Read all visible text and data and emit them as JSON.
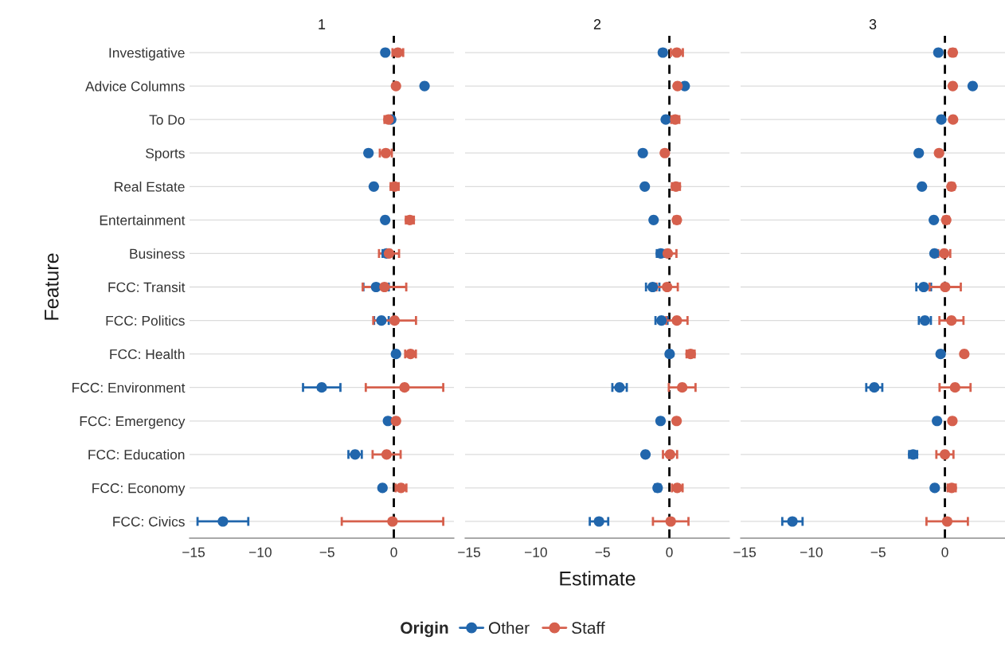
{
  "chart_data": [
    {
      "type": "scatter",
      "title": "1",
      "ylabel": "Feature",
      "legend_title": "Origin",
      "legend": "bottom",
      "orientation": "horizontal",
      "categories": [
        "Investigative",
        "Advice Columns",
        "To Do",
        "Sports",
        "Real Estate",
        "Entertainment",
        "Business",
        "FCC: Transit",
        "FCC: Politics",
        "FCC: Health",
        "FCC: Environment",
        "FCC: Emergency",
        "FCC: Education",
        "FCC: Economy",
        "FCC: Civics"
      ],
      "xlim": [
        -15.3,
        4.5
      ],
      "xticks": [
        {
          "value": -15,
          "label": "−15"
        },
        {
          "value": -10,
          "label": "−10"
        },
        {
          "value": -5,
          "label": "−5"
        },
        0
      ],
      "grid": "y",
      "marker": "circle",
      "ref_lines": [
        {
          "axis": "x",
          "value": 0,
          "color": "#000000",
          "line_style": "dashed"
        }
      ],
      "series": [
        {
          "name": "Other",
          "color": "#2166ac",
          "values": [
            -0.64,
            2.3,
            -0.2,
            -1.9,
            -1.5,
            -0.65,
            -0.54,
            -1.33,
            -0.93,
            0.16,
            -5.4,
            -0.44,
            -2.9,
            -0.85,
            -12.8
          ],
          "errors": [
            null,
            null,
            null,
            null,
            null,
            null,
            0.3,
            0.95,
            0.55,
            null,
            1.4,
            null,
            0.5,
            null,
            1.9
          ]
        },
        {
          "name": "Staff",
          "color": "#d6604d",
          "values": [
            0.3,
            0.16,
            -0.4,
            -0.6,
            0.06,
            1.2,
            -0.36,
            -0.7,
            0.06,
            1.25,
            0.8,
            0.16,
            -0.54,
            0.54,
            -0.1
          ],
          "errors": [
            0.4,
            null,
            0.3,
            0.45,
            0.3,
            0.3,
            0.75,
            1.63,
            1.6,
            0.4,
            2.9,
            null,
            1.05,
            0.4,
            3.8
          ]
        }
      ]
    },
    {
      "type": "scatter",
      "title": "2",
      "xlabel": "Estimate",
      "tick_labels": "x",
      "orientation": "horizontal",
      "categories": [
        null,
        null,
        null,
        null,
        null,
        null,
        null,
        null,
        null,
        null,
        null,
        null,
        null,
        null,
        null
      ],
      "xlim": [
        -15.3,
        4.5
      ],
      "xticks": [
        {
          "value": -15,
          "label": "−15"
        },
        {
          "value": -10,
          "label": "−10"
        },
        {
          "value": -5,
          "label": "−5"
        },
        0
      ],
      "grid": "y",
      "marker": "circle",
      "ref_lines": [
        {
          "axis": "x",
          "value": 0,
          "color": "#000000",
          "line_style": "dashed"
        }
      ],
      "series": [
        {
          "color": "#2166ac",
          "values": [
            -0.49,
            1.15,
            -0.27,
            -1.99,
            -1.84,
            -1.18,
            -0.64,
            -1.25,
            -0.59,
            0.02,
            -3.73,
            -0.66,
            -1.79,
            -0.88,
            -5.27
          ],
          "errors": [
            null,
            null,
            null,
            null,
            null,
            null,
            0.3,
            0.5,
            0.45,
            null,
            0.54,
            null,
            null,
            0.2,
            0.69
          ]
        },
        {
          "color": "#d6604d",
          "values": [
            0.56,
            0.61,
            0.44,
            -0.34,
            0.49,
            0.56,
            -0.12,
            -0.17,
            0.56,
            1.59,
            0.96,
            0.54,
            0.05,
            0.59,
            0.1
          ],
          "errors": [
            0.45,
            null,
            0.3,
            null,
            0.3,
            0.2,
            0.65,
            0.8,
            0.8,
            0.3,
            1.0,
            null,
            0.53,
            0.4,
            1.33
          ]
        }
      ]
    },
    {
      "type": "scatter",
      "title": "3",
      "tick_labels": "x",
      "orientation": "horizontal",
      "categories": [
        null,
        null,
        null,
        null,
        null,
        null,
        null,
        null,
        null,
        null,
        null,
        null,
        null,
        null,
        null
      ],
      "xlim": [
        -15.3,
        4.5
      ],
      "xticks": [
        {
          "value": -15,
          "label": "−15"
        },
        {
          "value": -10,
          "label": "−10"
        },
        {
          "value": -5,
          "label": "−5"
        },
        0
      ],
      "grid": "y",
      "marker": "circle",
      "ref_lines": [
        {
          "axis": "x",
          "value": 0,
          "color": "#000000",
          "line_style": "dashed"
        }
      ],
      "series": [
        {
          "color": "#2166ac",
          "values": [
            -0.49,
            2.08,
            -0.27,
            -1.96,
            -1.72,
            -0.83,
            -0.78,
            -1.59,
            -1.5,
            -0.32,
            -5.29,
            -0.59,
            -2.38,
            -0.76,
            -11.42
          ],
          "errors": [
            null,
            null,
            null,
            null,
            null,
            null,
            null,
            0.55,
            0.45,
            null,
            0.6,
            null,
            0.3,
            null,
            0.76
          ]
        },
        {
          "color": "#d6604d",
          "values": [
            0.59,
            0.59,
            0.61,
            -0.44,
            0.49,
            0.1,
            -0.05,
            0.02,
            0.49,
            1.45,
            0.76,
            0.56,
            0.0,
            0.51,
            0.17
          ],
          "errors": [
            0.2,
            null,
            null,
            null,
            0.2,
            0.2,
            0.45,
            1.17,
            0.9,
            null,
            1.16,
            null,
            0.64,
            0.3,
            1.55
          ]
        }
      ]
    }
  ]
}
